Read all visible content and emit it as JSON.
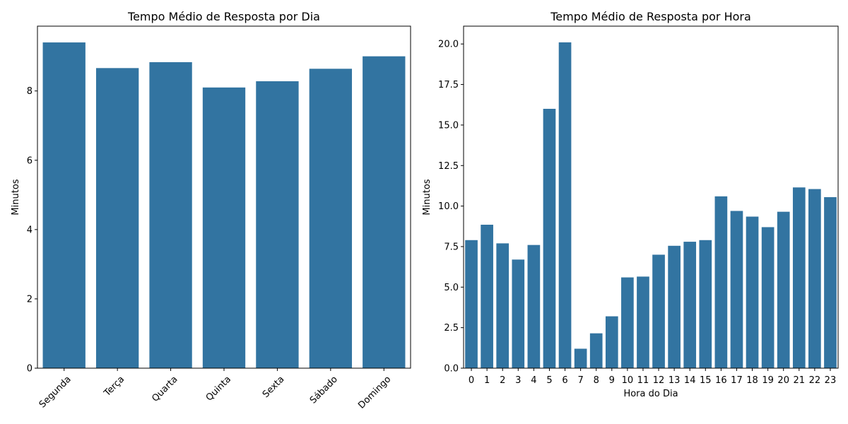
{
  "chart_data": [
    {
      "type": "bar",
      "title": "Tempo Médio de Resposta por Dia",
      "xlabel": "",
      "ylabel": "Minutos",
      "categories": [
        "Segunda",
        "Terça",
        "Quarta",
        "Quinta",
        "Sexta",
        "Sábado",
        "Domingo"
      ],
      "values": [
        9.4,
        8.66,
        8.83,
        8.1,
        8.28,
        8.64,
        9.0
      ],
      "ylim": [
        0,
        9.87
      ],
      "yticks": [
        0,
        2,
        4,
        6,
        8
      ],
      "ytick_labels": [
        "0",
        "2",
        "4",
        "6",
        "8"
      ],
      "xtick_rotation": 45,
      "color": "#3274a1",
      "grid": false
    },
    {
      "type": "bar",
      "title": "Tempo Médio de Resposta por Hora",
      "xlabel": "Hora do Dia",
      "ylabel": "Minutos",
      "categories": [
        "0",
        "1",
        "2",
        "3",
        "4",
        "5",
        "6",
        "7",
        "8",
        "9",
        "10",
        "11",
        "12",
        "13",
        "14",
        "15",
        "16",
        "17",
        "18",
        "19",
        "20",
        "21",
        "22",
        "23"
      ],
      "values": [
        7.9,
        8.85,
        7.7,
        6.7,
        7.6,
        16.0,
        20.1,
        1.2,
        2.15,
        3.2,
        5.6,
        5.65,
        7.0,
        7.55,
        7.8,
        7.9,
        10.6,
        9.7,
        9.35,
        8.7,
        9.65,
        11.15,
        11.05,
        10.55
      ],
      "ylim": [
        0,
        21.1
      ],
      "yticks": [
        0,
        2.5,
        5,
        7.5,
        10,
        12.5,
        15,
        17.5,
        20
      ],
      "ytick_labels": [
        "0.0",
        "2.5",
        "5.0",
        "7.5",
        "10.0",
        "12.5",
        "15.0",
        "17.5",
        "20.0"
      ],
      "xtick_rotation": 0,
      "color": "#3274a1",
      "grid": false
    }
  ]
}
